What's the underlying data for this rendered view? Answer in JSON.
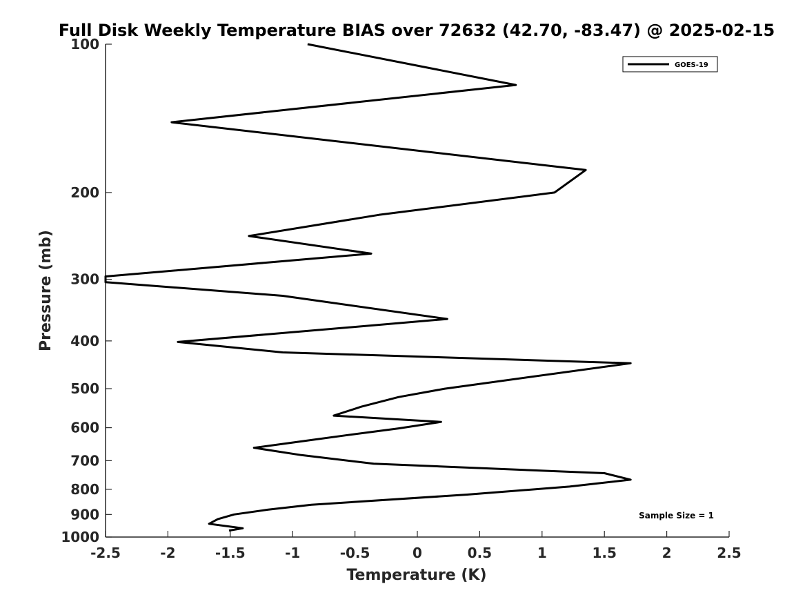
{
  "chart_data": {
    "type": "line",
    "title": "Full Disk Weekly Temperature BIAS over 72632 (42.70, -83.47) @ 2025-02-15",
    "xlabel": "Temperature (K)",
    "ylabel": "Pressure (mb)",
    "xlim": [
      -2.5,
      2.5
    ],
    "ylim": [
      100,
      1000
    ],
    "y_scale": "log",
    "y_reversed": true,
    "x_ticks": [
      -2.5,
      -2,
      -1.5,
      -1,
      -0.5,
      0,
      0.5,
      1,
      1.5,
      2,
      2.5
    ],
    "x_tick_labels": [
      "-2.5",
      "-2",
      "-1.5",
      "-1",
      "-0.5",
      "0",
      "0.5",
      "1",
      "1.5",
      "2",
      "2.5"
    ],
    "y_ticks": [
      100,
      200,
      300,
      400,
      500,
      600,
      700,
      800,
      900,
      1000
    ],
    "y_tick_labels": [
      "100",
      "200",
      "300",
      "400",
      "500",
      "600",
      "700",
      "800",
      "900",
      "1000"
    ],
    "grid": false,
    "legend_position": "top-right",
    "series": [
      {
        "name": "GOES-19",
        "color": "#000000",
        "x": [
          -0.88,
          0.79,
          -1.97,
          1.35,
          1.1,
          -0.31,
          -1.35,
          -0.37,
          -2.5,
          -2.5,
          -1.08,
          0.24,
          -1.92,
          -1.08,
          1.71,
          0.22,
          -0.15,
          -0.45,
          -0.67,
          0.19,
          -0.15,
          -0.56,
          -1.0,
          -1.31,
          -0.93,
          -0.35,
          1.5,
          1.71,
          1.22,
          0.4,
          -0.85,
          -1.2,
          -1.47,
          -1.6,
          -1.67,
          -1.4,
          -1.51
        ],
        "y": [
          100,
          121,
          144,
          180,
          200,
          222,
          245,
          266,
          296,
          304,
          324,
          361,
          402,
          422,
          444,
          500,
          520,
          544,
          567,
          584,
          602,
          621,
          643,
          659,
          682,
          710,
          742,
          765,
          790,
          820,
          860,
          880,
          900,
          920,
          940,
          960,
          970
        ]
      }
    ],
    "annotations": [
      {
        "text": "Sample Size = 1",
        "position": "bottom-right"
      }
    ]
  }
}
